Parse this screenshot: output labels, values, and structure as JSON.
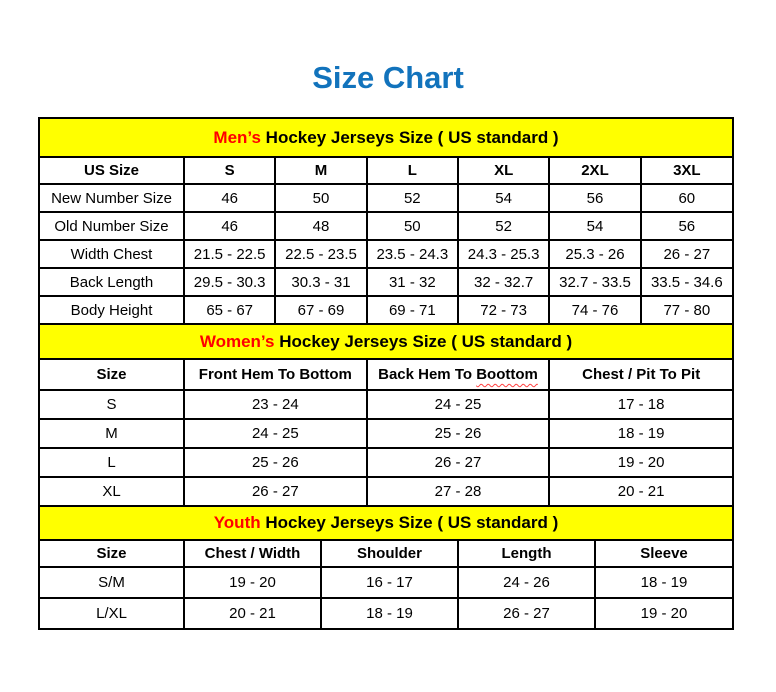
{
  "page_title": "Size Chart",
  "colors": {
    "title_blue": "#1273bc",
    "section_band_bg": "#ffff00",
    "section_accent_red": "#ff0000",
    "text": "#000000",
    "border": "#000000",
    "spellcheck_underline": "#ff4040"
  },
  "mens_section": {
    "band": {
      "accent": "Men’s",
      "rest": " Hockey Jerseys Size ( US standard )"
    },
    "headers": [
      "US Size",
      "S",
      "M",
      "L",
      "XL",
      "2XL",
      "3XL"
    ],
    "rows": [
      {
        "label": "New Number Size",
        "values": [
          "46",
          "50",
          "52",
          "54",
          "56",
          "60"
        ]
      },
      {
        "label": "Old Number Size",
        "values": [
          "46",
          "48",
          "50",
          "52",
          "54",
          "56"
        ]
      },
      {
        "label": "Width Chest",
        "values": [
          "21.5 - 22.5",
          "22.5 - 23.5",
          "23.5 - 24.3",
          "24.3 - 25.3",
          "25.3 - 26",
          "26 - 27"
        ]
      },
      {
        "label": "Back Length",
        "values": [
          "29.5 - 30.3",
          "30.3 - 31",
          "31 - 32",
          "32 - 32.7",
          "32.7 - 33.5",
          "33.5 - 34.6"
        ]
      },
      {
        "label": "Body Height",
        "values": [
          "65 - 67",
          "67 - 69",
          "69 - 71",
          "72 - 73",
          "74 - 76",
          "77 - 80"
        ]
      }
    ]
  },
  "womens_section": {
    "band": {
      "accent": "Women’s",
      "rest": " Hockey Jerseys Size ( US standard )"
    },
    "headers": {
      "col0": "Size",
      "col1": "Front Hem To Bottom",
      "col2_prefix": "Back Hem To ",
      "col2_misspelled": "Boottom",
      "col3": "Chest / Pit To Pit"
    },
    "rows": [
      {
        "label": "S",
        "values": [
          "23 - 24",
          "24 - 25",
          "17 - 18"
        ]
      },
      {
        "label": "M",
        "values": [
          "24 - 25",
          "25 - 26",
          "18 - 19"
        ]
      },
      {
        "label": "L",
        "values": [
          "25 - 26",
          "26 - 27",
          "19 - 20"
        ]
      },
      {
        "label": "XL",
        "values": [
          "26 - 27",
          "27 - 28",
          "20 - 21"
        ]
      }
    ]
  },
  "youth_section": {
    "band": {
      "accent": "Youth",
      "rest": " Hockey Jerseys Size ( US standard )"
    },
    "headers": [
      "Size",
      "Chest / Width",
      "Shoulder",
      "Length",
      "Sleeve"
    ],
    "rows": [
      {
        "label": "S/M",
        "values": [
          "19 - 20",
          "16 - 17",
          "24 - 26",
          "18 - 19"
        ]
      },
      {
        "label": "L/XL",
        "values": [
          "20 - 21",
          "18 - 19",
          "26 - 27",
          "19 - 20"
        ]
      }
    ]
  }
}
